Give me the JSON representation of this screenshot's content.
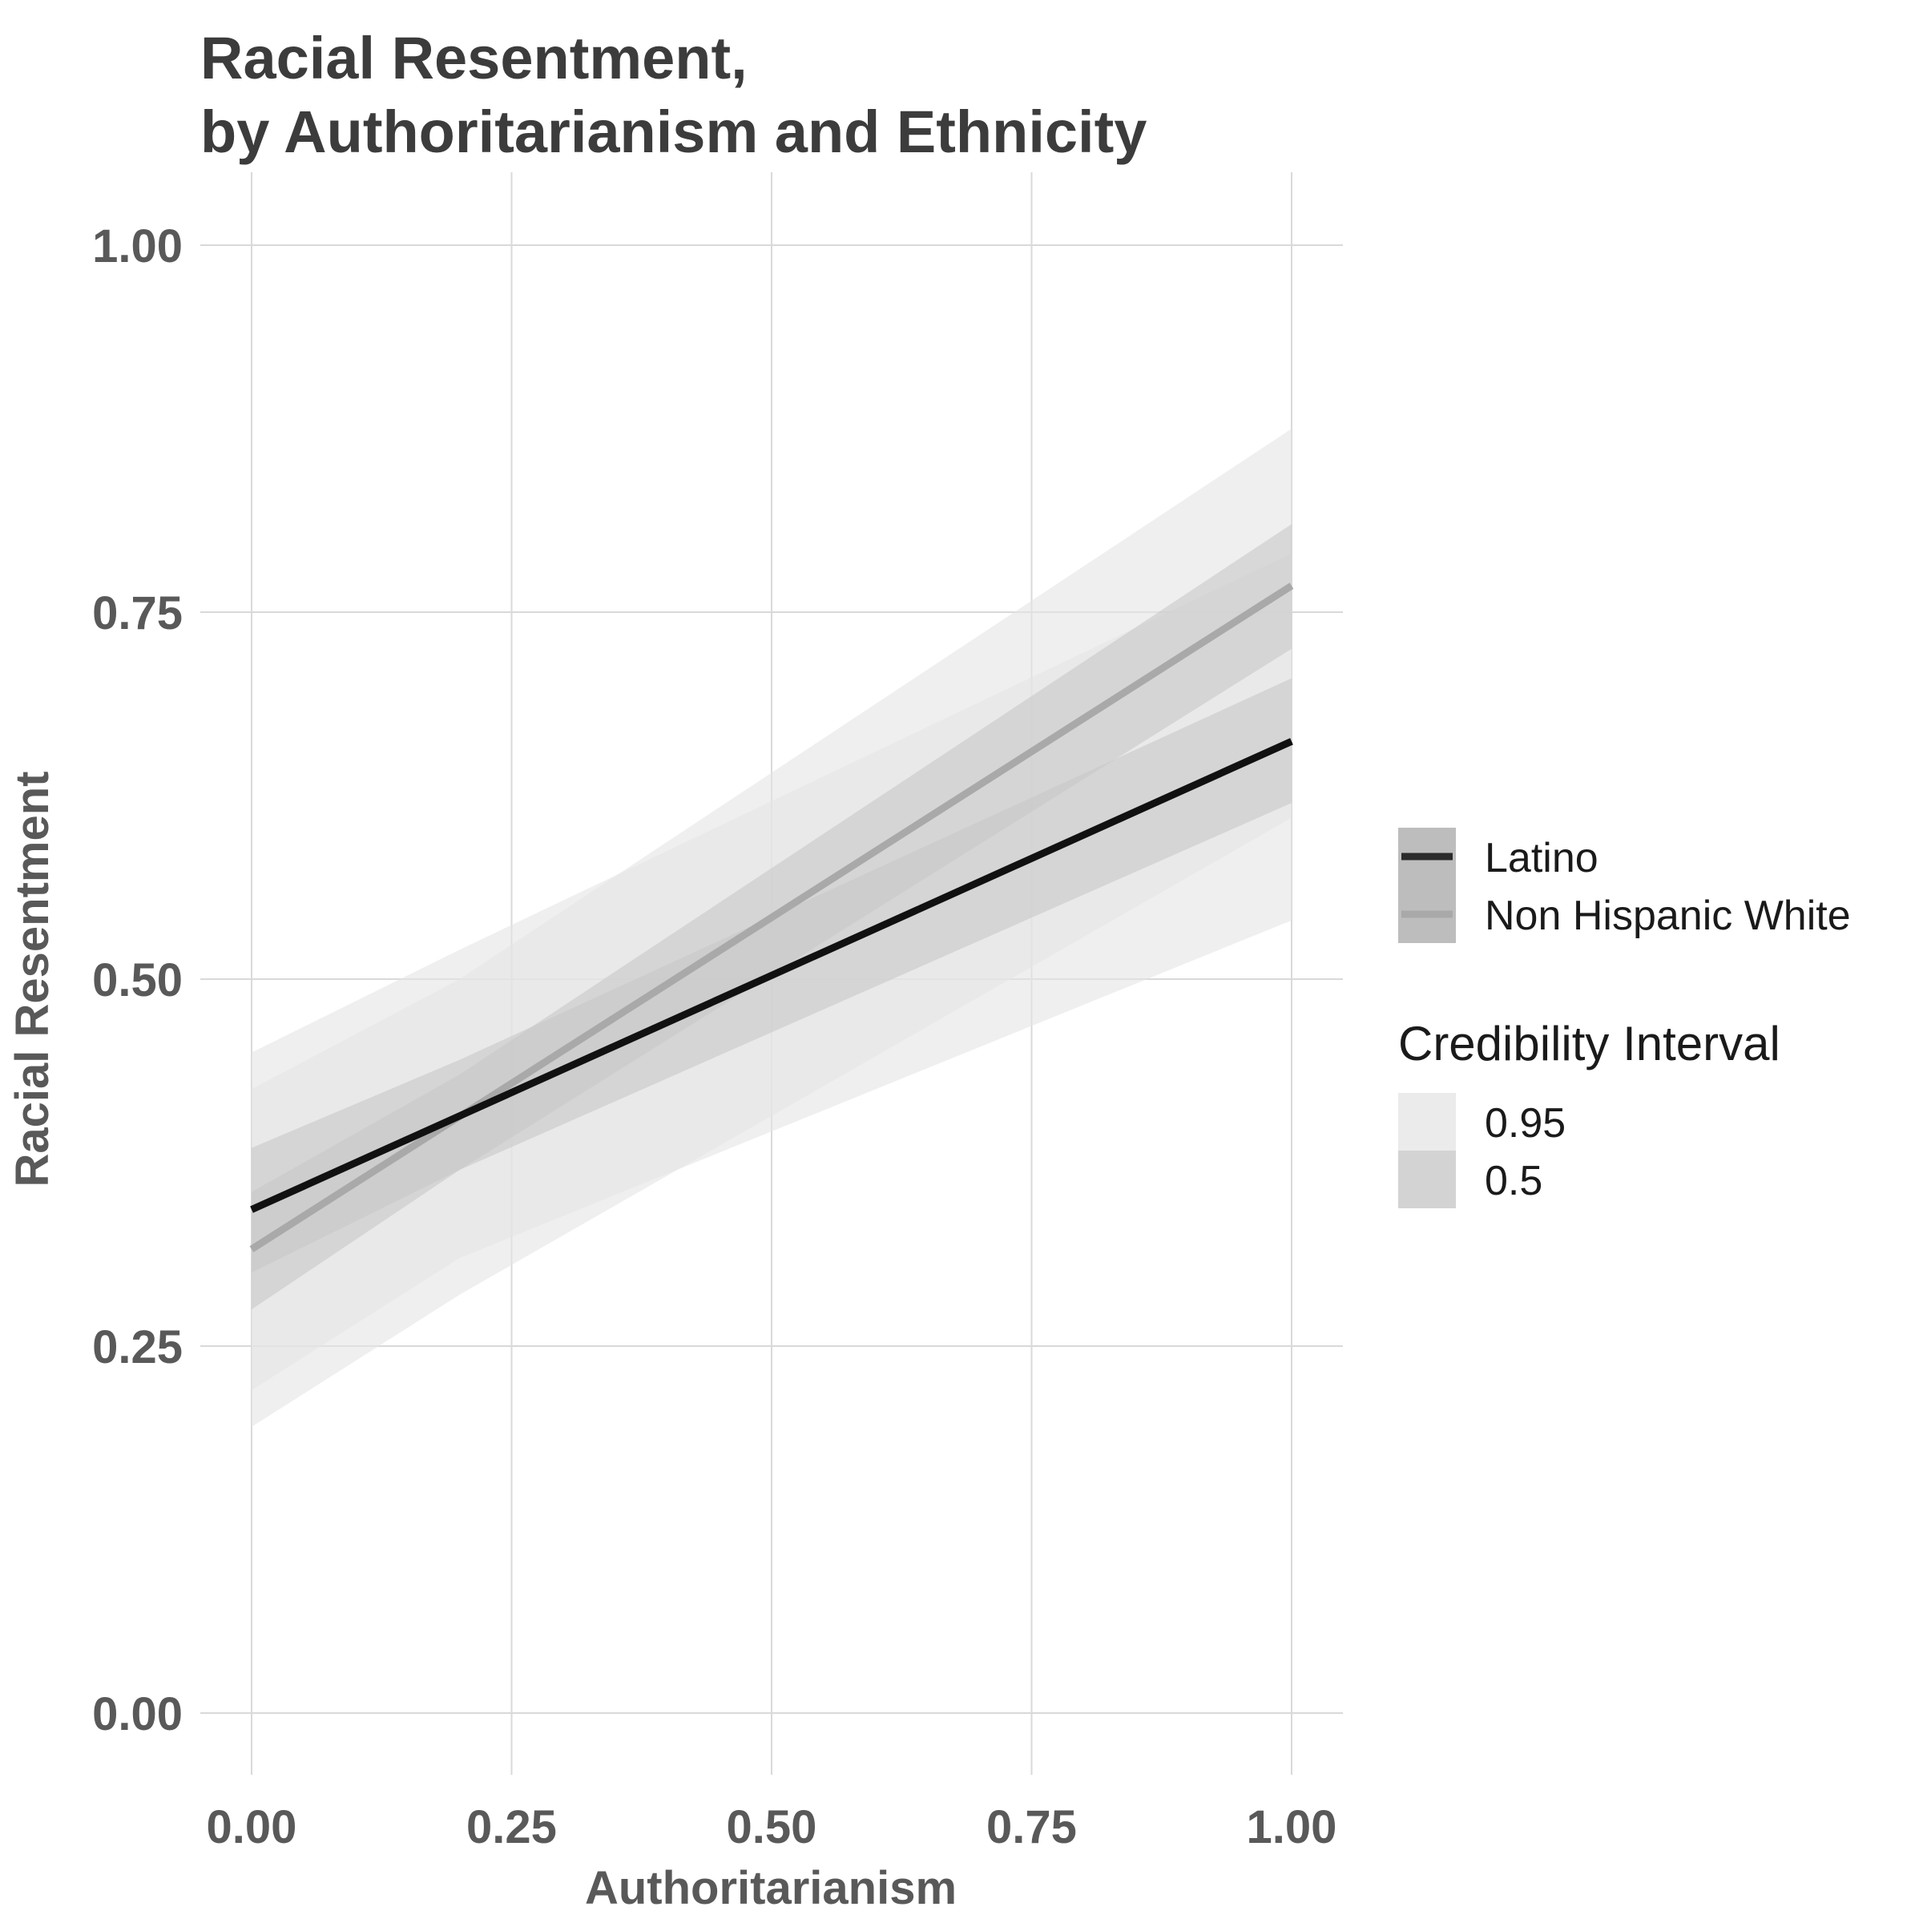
{
  "chart_data": {
    "type": "line",
    "title": [
      "Racial Resentment,",
      "by Authoritarianism and Ethnicity"
    ],
    "xlabel": "Authoritarianism",
    "ylabel": "Racial Resentment",
    "xlim": [
      0,
      1
    ],
    "ylim": [
      0,
      1
    ],
    "x_ticks": [
      0,
      0.25,
      0.5,
      0.75,
      1
    ],
    "x_tick_labels": [
      "0.00",
      "0.25",
      "0.50",
      "0.75",
      "1.00"
    ],
    "y_ticks": [
      0,
      0.25,
      0.5,
      0.75,
      1
    ],
    "y_tick_labels": [
      "0.00",
      "0.25",
      "0.50",
      "0.75",
      "1.00"
    ],
    "grid": true,
    "legend_position": "right",
    "series": [
      {
        "name": "Latino",
        "color": "#111111",
        "x": [
          0,
          1
        ],
        "y": [
          0.343,
          0.662
        ],
        "ci95": {
          "x": [
            0,
            0.2,
            1
          ],
          "lower": [
            0.22,
            0.31,
            0.54
          ],
          "upper": [
            0.45,
            0.52,
            0.79
          ]
        },
        "ci50": {
          "x": [
            0,
            0.2,
            1
          ],
          "lower": [
            0.3,
            0.37,
            0.62
          ],
          "upper": [
            0.385,
            0.445,
            0.705
          ]
        }
      },
      {
        "name": "Non Hispanic White",
        "color": "#a9a9a9",
        "x": [
          0,
          1
        ],
        "y": [
          0.316,
          0.768
        ],
        "ci95": {
          "x": [
            0,
            0.2,
            1
          ],
          "lower": [
            0.195,
            0.285,
            0.61
          ],
          "upper": [
            0.425,
            0.5,
            0.875
          ]
        },
        "ci50": {
          "x": [
            0,
            0.2,
            1
          ],
          "lower": [
            0.275,
            0.37,
            0.725
          ],
          "upper": [
            0.355,
            0.435,
            0.81
          ]
        }
      }
    ],
    "color_legend": {
      "entries": [
        "Latino",
        "Non Hispanic White"
      ]
    },
    "fill_legend": {
      "title": "Credibility Interval",
      "entries": [
        {
          "label": "0.95",
          "color": "#ebebeb"
        },
        {
          "label": "0.5",
          "color": "#d3d3d3"
        }
      ]
    },
    "colors": {
      "grid": "#d9d9d9",
      "ci95_fill": "#e4e4e4",
      "ci50_fill": "#c8c8c8",
      "legend_key_bg": "#bdbdbd"
    }
  }
}
